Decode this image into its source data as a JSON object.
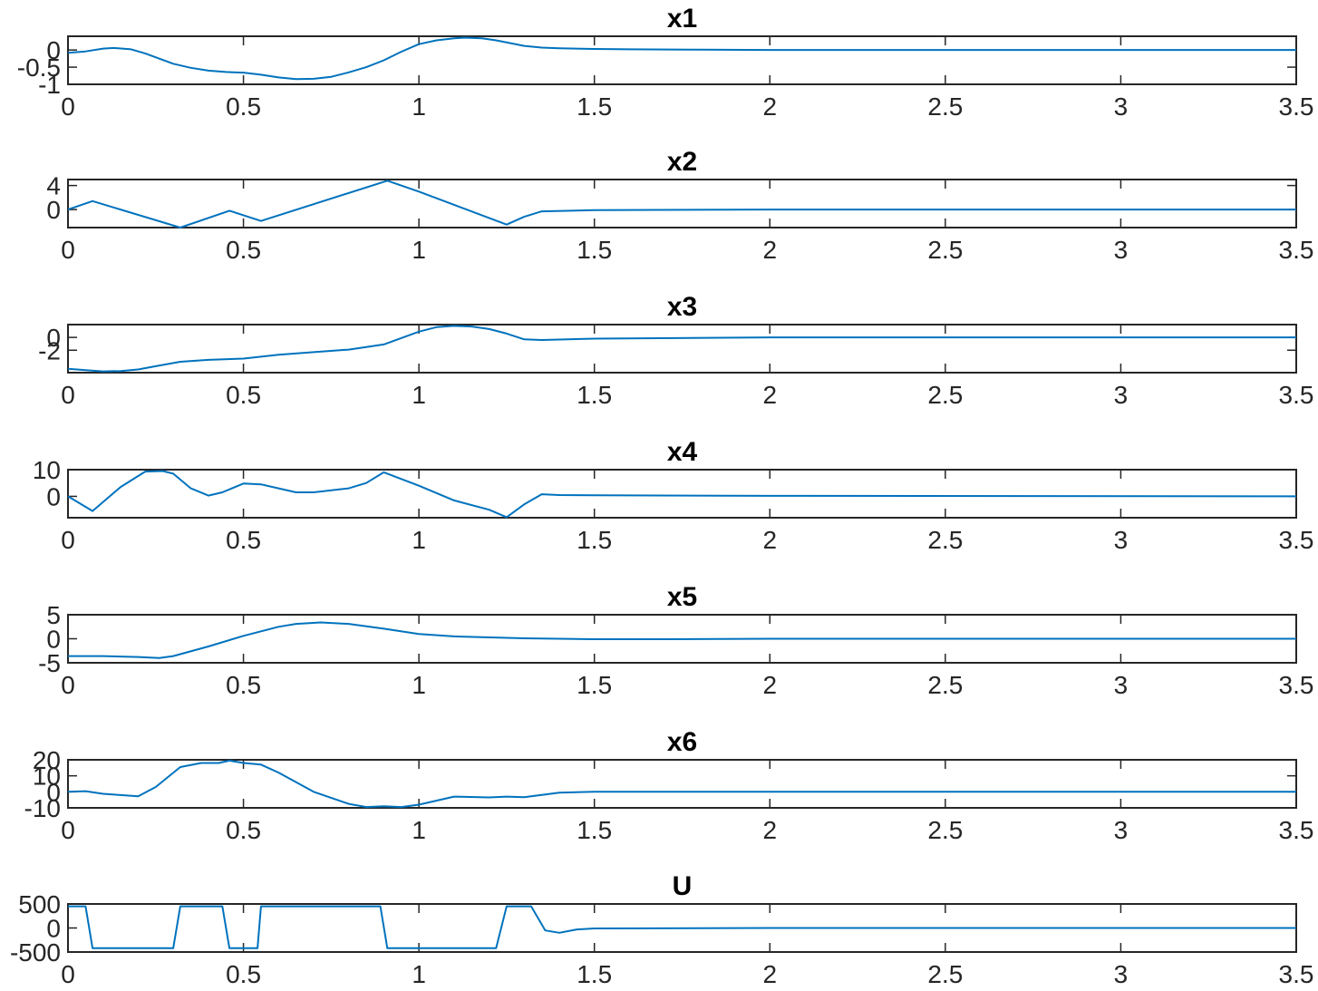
{
  "style": {
    "line_color": "#0072BD",
    "axis_color": "#262626",
    "background": "#ffffff"
  },
  "chart_data": [
    {
      "type": "line",
      "title": "x1",
      "xlabel": "",
      "ylabel": "",
      "xlim": [
        0,
        3.5
      ],
      "ylim": [
        -1,
        0.4
      ],
      "xticks": [
        0,
        0.5,
        1,
        1.5,
        2,
        2.5,
        3,
        3.5
      ],
      "xtick_labels": [
        "0",
        "0.5",
        "1",
        "1.5",
        "2",
        "2.5",
        "3",
        "3.5"
      ],
      "yticks": [
        -1,
        -0.5,
        0
      ],
      "ytick_labels": [
        "-1",
        "-0.5",
        "0"
      ],
      "grid": false,
      "series": [
        {
          "x": [
            0,
            0.05,
            0.1,
            0.13,
            0.18,
            0.22,
            0.3,
            0.35,
            0.4,
            0.45,
            0.5,
            0.55,
            0.6,
            0.65,
            0.7,
            0.75,
            0.8,
            0.85,
            0.9,
            0.95,
            1.0,
            1.05,
            1.1,
            1.13,
            1.18,
            1.22,
            1.3,
            1.35,
            1.4,
            1.5,
            1.6,
            1.8,
            2.0,
            2.5,
            3.0,
            3.5
          ],
          "y": [
            -0.08,
            -0.04,
            0.04,
            0.06,
            0.02,
            -0.1,
            -0.4,
            -0.52,
            -0.6,
            -0.64,
            -0.66,
            -0.72,
            -0.8,
            -0.85,
            -0.84,
            -0.78,
            -0.65,
            -0.5,
            -0.3,
            -0.05,
            0.17,
            0.28,
            0.34,
            0.36,
            0.34,
            0.28,
            0.12,
            0.07,
            0.05,
            0.03,
            0.02,
            0.01,
            0.0,
            0.0,
            0.0,
            0.0
          ]
        }
      ]
    },
    {
      "type": "line",
      "title": "x2",
      "xlabel": "",
      "ylabel": "",
      "xlim": [
        0,
        3.5
      ],
      "ylim": [
        -3,
        5
      ],
      "xticks": [
        0,
        0.5,
        1,
        1.5,
        2,
        2.5,
        3,
        3.5
      ],
      "xtick_labels": [
        "0",
        "0.5",
        "1",
        "1.5",
        "2",
        "2.5",
        "3",
        "3.5"
      ],
      "yticks": [
        0,
        4
      ],
      "ytick_labels": [
        "0",
        "4"
      ],
      "grid": false,
      "series": [
        {
          "x": [
            0,
            0.07,
            0.32,
            0.46,
            0.55,
            0.91,
            1.0,
            1.25,
            1.3,
            1.35,
            1.5,
            2.0,
            3.5
          ],
          "y": [
            0,
            1.4,
            -3.0,
            -0.2,
            -1.9,
            4.8,
            3.0,
            -2.5,
            -1.2,
            -0.3,
            -0.1,
            0.0,
            0.0
          ]
        }
      ]
    },
    {
      "type": "line",
      "title": "x3",
      "xlabel": "",
      "ylabel": "",
      "xlim": [
        0,
        3.5
      ],
      "ylim": [
        -5.5,
        2
      ],
      "xticks": [
        0,
        0.5,
        1,
        1.5,
        2,
        2.5,
        3,
        3.5
      ],
      "xtick_labels": [
        "0",
        "0.5",
        "1",
        "1.5",
        "2",
        "2.5",
        "3",
        "3.5"
      ],
      "yticks": [
        -2,
        0
      ],
      "ytick_labels": [
        "-2",
        "0"
      ],
      "grid": false,
      "series": [
        {
          "x": [
            0,
            0.05,
            0.1,
            0.15,
            0.2,
            0.25,
            0.32,
            0.4,
            0.5,
            0.6,
            0.7,
            0.8,
            0.9,
            1.0,
            1.05,
            1.1,
            1.15,
            1.2,
            1.25,
            1.3,
            1.35,
            1.5,
            2.0,
            3.5
          ],
          "y": [
            -4.9,
            -5.1,
            -5.3,
            -5.25,
            -5.0,
            -4.5,
            -3.8,
            -3.5,
            -3.3,
            -2.7,
            -2.3,
            -1.9,
            -1.1,
            0.9,
            1.6,
            1.8,
            1.7,
            1.3,
            0.6,
            -0.3,
            -0.4,
            -0.2,
            0.0,
            0.0
          ]
        }
      ]
    },
    {
      "type": "line",
      "title": "x4",
      "xlabel": "",
      "ylabel": "",
      "xlim": [
        0,
        3.5
      ],
      "ylim": [
        -8,
        10
      ],
      "xticks": [
        0,
        0.5,
        1,
        1.5,
        2,
        2.5,
        3,
        3.5
      ],
      "xtick_labels": [
        "0",
        "0.5",
        "1",
        "1.5",
        "2",
        "2.5",
        "3",
        "3.5"
      ],
      "yticks": [
        0,
        10
      ],
      "ytick_labels": [
        "0",
        "10"
      ],
      "grid": false,
      "series": [
        {
          "x": [
            0,
            0.07,
            0.15,
            0.22,
            0.27,
            0.3,
            0.35,
            0.4,
            0.44,
            0.5,
            0.55,
            0.6,
            0.65,
            0.7,
            0.8,
            0.85,
            0.9,
            1.0,
            1.1,
            1.2,
            1.25,
            1.3,
            1.35,
            1.4,
            1.5,
            2.0,
            3.5
          ],
          "y": [
            0,
            -5.5,
            3.5,
            9.3,
            9.5,
            8.5,
            3.0,
            0.3,
            1.5,
            4.8,
            4.5,
            3.0,
            1.5,
            1.5,
            3.0,
            5.0,
            9.0,
            4.0,
            -1.5,
            -5.0,
            -7.8,
            -3.0,
            0.8,
            0.5,
            0.4,
            0.2,
            0.0
          ]
        }
      ]
    },
    {
      "type": "line",
      "title": "x5",
      "xlabel": "",
      "ylabel": "",
      "xlim": [
        0,
        3.5
      ],
      "ylim": [
        -5,
        5
      ],
      "xticks": [
        0,
        0.5,
        1,
        1.5,
        2,
        2.5,
        3,
        3.5
      ],
      "xtick_labels": [
        "0",
        "0.5",
        "1",
        "1.5",
        "2",
        "2.5",
        "3",
        "3.5"
      ],
      "yticks": [
        -5,
        0,
        5
      ],
      "ytick_labels": [
        "-5",
        "0",
        "5"
      ],
      "grid": false,
      "series": [
        {
          "x": [
            0,
            0.1,
            0.2,
            0.26,
            0.3,
            0.4,
            0.5,
            0.6,
            0.65,
            0.72,
            0.8,
            0.9,
            1.0,
            1.1,
            1.3,
            1.5,
            1.7,
            2.0,
            3.5
          ],
          "y": [
            -3.6,
            -3.6,
            -3.8,
            -4.0,
            -3.6,
            -1.6,
            0.6,
            2.5,
            3.1,
            3.4,
            3.1,
            2.1,
            1.0,
            0.5,
            0.1,
            -0.1,
            -0.1,
            0.0,
            0.0
          ]
        }
      ]
    },
    {
      "type": "line",
      "title": "x6",
      "xlabel": "",
      "ylabel": "",
      "xlim": [
        0,
        3.5
      ],
      "ylim": [
        -10,
        20
      ],
      "xticks": [
        0,
        0.5,
        1,
        1.5,
        2,
        2.5,
        3,
        3.5
      ],
      "xtick_labels": [
        "0",
        "0.5",
        "1",
        "1.5",
        "2",
        "2.5",
        "3",
        "3.5"
      ],
      "yticks": [
        -10,
        0,
        10,
        20
      ],
      "ytick_labels": [
        "-10",
        "0",
        "10",
        "20"
      ],
      "grid": false,
      "series": [
        {
          "x": [
            0,
            0.05,
            0.1,
            0.15,
            0.2,
            0.25,
            0.32,
            0.38,
            0.43,
            0.46,
            0.5,
            0.55,
            0.6,
            0.7,
            0.8,
            0.85,
            0.9,
            0.95,
            1.0,
            1.1,
            1.2,
            1.25,
            1.3,
            1.4,
            1.5,
            2.0,
            3.5
          ],
          "y": [
            0,
            0.4,
            -1.2,
            -2.0,
            -2.8,
            3.0,
            15.5,
            18.0,
            18.0,
            19.5,
            18.0,
            17.0,
            12.0,
            0.0,
            -7.5,
            -9.5,
            -9.0,
            -9.5,
            -8.0,
            -3.0,
            -3.5,
            -3.0,
            -3.3,
            -0.5,
            0.0,
            0.0,
            0.0
          ]
        }
      ]
    },
    {
      "type": "line",
      "title": "U",
      "xlabel": "",
      "ylabel": "",
      "xlim": [
        0,
        3.5
      ],
      "ylim": [
        -500,
        500
      ],
      "xticks": [
        0,
        0.5,
        1,
        1.5,
        2,
        2.5,
        3,
        3.5
      ],
      "xtick_labels": [
        "0",
        "0.5",
        "1",
        "1.5",
        "2",
        "2.5",
        "3",
        "3.5"
      ],
      "yticks": [
        -500,
        0,
        500
      ],
      "ytick_labels": [
        "-500",
        "0",
        "500"
      ],
      "grid": false,
      "series": [
        {
          "x": [
            0,
            0.05,
            0.07,
            0.3,
            0.32,
            0.44,
            0.46,
            0.54,
            0.55,
            0.89,
            0.91,
            1.22,
            1.25,
            1.32,
            1.36,
            1.4,
            1.45,
            1.5,
            2.0,
            3.5
          ],
          "y": [
            450,
            450,
            -420,
            -420,
            450,
            450,
            -420,
            -420,
            450,
            450,
            -420,
            -420,
            450,
            450,
            -50,
            -100,
            -30,
            -10,
            0,
            0
          ]
        }
      ]
    }
  ]
}
